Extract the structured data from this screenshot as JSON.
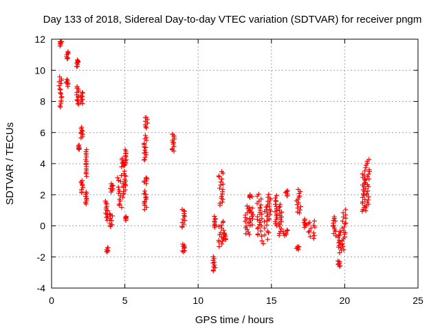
{
  "chart_data": {
    "type": "scatter",
    "title": "Day 133 of 2018, Sidereal Day-to-day VTEC variation (SDTVAR) for receiver pngm",
    "xlabel": "GPS time / hours",
    "ylabel": "SDTVAR / TECUs",
    "xlim": [
      0,
      25
    ],
    "ylim": [
      -4,
      12
    ],
    "xticks": [
      0,
      5,
      10,
      15,
      20,
      25
    ],
    "yticks": [
      -4,
      -2,
      0,
      2,
      4,
      6,
      8,
      10,
      12
    ],
    "grid": true,
    "marker": "+",
    "color": "#ff0000",
    "clusters": [
      {
        "x": [
          0.5,
          0.7
        ],
        "y": [
          7.6,
          9.6
        ]
      },
      {
        "x": [
          0.55,
          0.7
        ],
        "y": [
          11.6,
          11.9
        ]
      },
      {
        "x": [
          1.0,
          1.15
        ],
        "y": [
          9.0,
          9.4
        ]
      },
      {
        "x": [
          1.0,
          1.15
        ],
        "y": [
          10.7,
          11.2
        ]
      },
      {
        "x": [
          1.7,
          1.85
        ],
        "y": [
          10.2,
          10.7
        ]
      },
      {
        "x": [
          1.7,
          1.85
        ],
        "y": [
          7.8,
          9.0
        ]
      },
      {
        "x": [
          1.8,
          1.9
        ],
        "y": [
          4.9,
          5.2
        ]
      },
      {
        "x": [
          2.0,
          2.15
        ],
        "y": [
          7.9,
          8.6
        ]
      },
      {
        "x": [
          2.0,
          2.15
        ],
        "y": [
          5.7,
          6.3
        ]
      },
      {
        "x": [
          2.0,
          2.15
        ],
        "y": [
          2.1,
          2.9
        ]
      },
      {
        "x": [
          2.3,
          2.4
        ],
        "y": [
          3.2,
          4.9
        ]
      },
      {
        "x": [
          2.3,
          2.4
        ],
        "y": [
          1.4,
          2.2
        ]
      },
      {
        "x": [
          3.65,
          3.85
        ],
        "y": [
          -1.7,
          -1.4
        ]
      },
      {
        "x": [
          3.65,
          3.85
        ],
        "y": [
          0.4,
          1.6
        ]
      },
      {
        "x": [
          3.95,
          4.15
        ],
        "y": [
          -0.1,
          0.8
        ]
      },
      {
        "x": [
          4.0,
          4.2
        ],
        "y": [
          2.2,
          2.7
        ]
      },
      {
        "x": [
          4.5,
          4.9
        ],
        "y": [
          1.2,
          3.2
        ]
      },
      {
        "x": [
          4.7,
          5.0
        ],
        "y": [
          3.8,
          4.3
        ]
      },
      {
        "x": [
          4.9,
          5.1
        ],
        "y": [
          2.0,
          3.5
        ]
      },
      {
        "x": [
          5.0,
          5.1
        ],
        "y": [
          4.0,
          4.9
        ]
      },
      {
        "x": [
          5.05,
          5.1
        ],
        "y": [
          0.4,
          0.6
        ]
      },
      {
        "x": [
          6.3,
          6.5
        ],
        "y": [
          1.1,
          2.2
        ]
      },
      {
        "x": [
          6.3,
          6.5
        ],
        "y": [
          2.7,
          3.1
        ]
      },
      {
        "x": [
          6.3,
          6.5
        ],
        "y": [
          4.2,
          5.8
        ]
      },
      {
        "x": [
          6.35,
          6.55
        ],
        "y": [
          6.3,
          7.0
        ]
      },
      {
        "x": [
          8.2,
          8.4
        ],
        "y": [
          4.8,
          5.9
        ]
      },
      {
        "x": [
          8.9,
          9.1
        ],
        "y": [
          -1.7,
          -1.2
        ]
      },
      {
        "x": [
          8.9,
          9.1
        ],
        "y": [
          -0.1,
          1.1
        ]
      },
      {
        "x": [
          11.0,
          11.2
        ],
        "y": [
          -2.9,
          -2.0
        ]
      },
      {
        "x": [
          11.1,
          11.2
        ],
        "y": [
          -0.1,
          0.6
        ]
      },
      {
        "x": [
          11.4,
          11.7
        ],
        "y": [
          1.3,
          3.5
        ]
      },
      {
        "x": [
          11.4,
          11.8
        ],
        "y": [
          -1.3,
          0.3
        ]
      },
      {
        "x": [
          11.6,
          11.9
        ],
        "y": [
          -1.0,
          -0.5
        ]
      },
      {
        "x": [
          13.2,
          13.5
        ],
        "y": [
          -0.6,
          1.3
        ]
      },
      {
        "x": [
          13.5,
          13.7
        ],
        "y": [
          1.8,
          2.0
        ]
      },
      {
        "x": [
          13.5,
          13.8
        ],
        "y": [
          0.0,
          1.1
        ]
      },
      {
        "x": [
          14.0,
          14.3
        ],
        "y": [
          -0.6,
          2.0
        ]
      },
      {
        "x": [
          14.3,
          14.9
        ],
        "y": [
          -1.1,
          1.3
        ]
      },
      {
        "x": [
          14.7,
          14.95
        ],
        "y": [
          0.4,
          2.0
        ]
      },
      {
        "x": [
          15.2,
          15.4
        ],
        "y": [
          0.0,
          1.9
        ]
      },
      {
        "x": [
          15.5,
          15.7
        ],
        "y": [
          -0.6,
          1.4
        ]
      },
      {
        "x": [
          15.8,
          16.1
        ],
        "y": [
          -0.6,
          -0.3
        ]
      },
      {
        "x": [
          15.9,
          16.1
        ],
        "y": [
          1.9,
          2.3
        ]
      },
      {
        "x": [
          16.7,
          16.9
        ],
        "y": [
          -1.5,
          -1.3
        ]
      },
      {
        "x": [
          16.7,
          17.0
        ],
        "y": [
          0.8,
          2.3
        ]
      },
      {
        "x": [
          17.2,
          17.4
        ],
        "y": [
          -0.1,
          0.4
        ]
      },
      {
        "x": [
          17.5,
          18.0
        ],
        "y": [
          -0.8,
          0.3
        ]
      },
      {
        "x": [
          19.2,
          19.4
        ],
        "y": [
          -0.6,
          0.6
        ]
      },
      {
        "x": [
          19.5,
          19.7
        ],
        "y": [
          -2.6,
          -2.3
        ]
      },
      {
        "x": [
          19.5,
          19.8
        ],
        "y": [
          -1.7,
          -0.3
        ]
      },
      {
        "x": [
          19.8,
          20.1
        ],
        "y": [
          -1.5,
          1.0
        ]
      },
      {
        "x": [
          21.2,
          21.4
        ],
        "y": [
          0.9,
          3.5
        ]
      },
      {
        "x": [
          21.4,
          21.7
        ],
        "y": [
          1.0,
          4.3
        ]
      }
    ]
  }
}
